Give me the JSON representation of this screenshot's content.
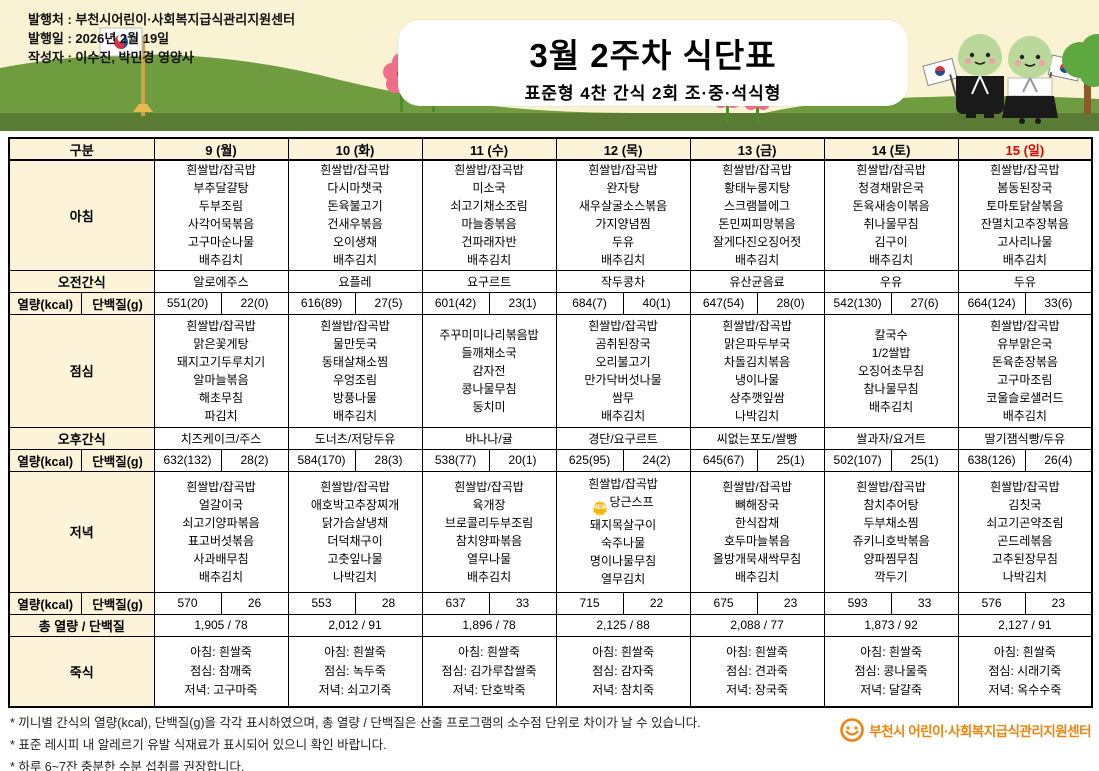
{
  "meta": {
    "publisher": "발행처 : 부천시어린이·사회복지급식관리지원센터",
    "issued": "발행일 : 2026년 2월 19일",
    "author": "작성자 : 이수진, 박민경 영양사"
  },
  "title": {
    "main": "3월 2주차 식단표",
    "sub": "표준형 4찬 간식 2회 조·중·석식형"
  },
  "table": {
    "corner": "구분",
    "labels": {
      "breakfast": "아침",
      "am_snack": "오전간식",
      "kcal": "열량(kcal)",
      "protein": "단백질(g)",
      "lunch": "점심",
      "pm_snack": "오후간식",
      "dinner": "저녁",
      "total": "총 열량 / 단백질",
      "porridge": "죽식"
    },
    "days": [
      {
        "date": "9 (월)",
        "holiday": false,
        "breakfast": [
          "흰쌀밥/잡곡밥",
          "부추달걀탕",
          "두부조림",
          "사각어묵볶음",
          "고구마순나물",
          "배추김치"
        ],
        "am_snack": "알로에주스",
        "kcal1": "551(20)",
        "protein1": "22(0)",
        "lunch": [
          "흰쌀밥/잡곡밥",
          "맑은꽃게탕",
          "돼지고기두루치기",
          "알마늘볶음",
          "해초무침",
          "파김치"
        ],
        "pm_snack": "치즈케이크/주스",
        "kcal2": "632(132)",
        "protein2": "28(2)",
        "dinner": [
          "흰쌀밥/잡곡밥",
          "얼갈이국",
          "쇠고기양파볶음",
          "표고버섯볶음",
          "사과배무침",
          "배추김치"
        ],
        "kcal3": "570",
        "protein3": "26",
        "total": "1,905  /  78",
        "porridge": [
          "아침: 흰쌀죽",
          "점심: 참깨죽",
          "저녁: 고구마죽"
        ]
      },
      {
        "date": "10 (화)",
        "holiday": false,
        "breakfast": [
          "흰쌀밥/잡곡밥",
          "다시마챗국",
          "돈육불고기",
          "건새우볶음",
          "오이생채",
          "배추김치"
        ],
        "am_snack": "요플레",
        "kcal1": "616(89)",
        "protein1": "27(5)",
        "lunch": [
          "흰쌀밥/잡곡밥",
          "물만둣국",
          "동태살채소찜",
          "우엉조림",
          "방풍나물",
          "배추김치"
        ],
        "pm_snack": "도너츠/저당두유",
        "kcal2": "584(170)",
        "protein2": "28(3)",
        "dinner": [
          "흰쌀밥/잡곡밥",
          "애호박고추장찌개",
          "닭가슴살냉채",
          "더덕채구이",
          "고춧잎나물",
          "나박김치"
        ],
        "kcal3": "553",
        "protein3": "28",
        "total": "2,012  /  91",
        "porridge": [
          "아침: 흰쌀죽",
          "점심: 녹두죽",
          "저녁: 쇠고기죽"
        ]
      },
      {
        "date": "11 (수)",
        "holiday": false,
        "breakfast": [
          "흰쌀밥/잡곡밥",
          "미소국",
          "쇠고기채소조림",
          "마늘종볶음",
          "건파래자반",
          "배추김치"
        ],
        "am_snack": "요구르트",
        "kcal1": "601(42)",
        "protein1": "23(1)",
        "lunch": [
          "주꾸미미나리볶음밥",
          "들깨채소국",
          "감자전",
          "콩나물무침",
          "동치미"
        ],
        "pm_snack": "바나나/귤",
        "kcal2": "538(77)",
        "protein2": "20(1)",
        "dinner": [
          "흰쌀밥/잡곡밥",
          "육개장",
          "브로콜리두부조림",
          "참치양파볶음",
          "열무나물",
          "배추김치"
        ],
        "kcal3": "637",
        "protein3": "33",
        "total": "1,896  /  78",
        "porridge": [
          "아침: 흰쌀죽",
          "점심: 김가루찹쌀죽",
          "저녁: 단호박죽"
        ]
      },
      {
        "date": "12 (목)",
        "holiday": false,
        "breakfast": [
          "흰쌀밥/잡곡밥",
          "완자탕",
          "새우살굴소스볶음",
          "가지양념찜",
          "두유",
          "배추김치"
        ],
        "am_snack": "작두콩차",
        "kcal1": "684(7)",
        "protein1": "40(1)",
        "lunch": [
          "흰쌀밥/잡곡밥",
          "곰취된장국",
          "오리불고기",
          "만가닥버섯나물",
          "쌈무",
          "배추김치"
        ],
        "pm_snack": "경단/요구르트",
        "kcal2": "625(95)",
        "protein2": "24(2)",
        "dinner": [
          "흰쌀밥/잡곡밥",
          {
            "text": "당근스프",
            "badge": "NEW"
          },
          "돼지목살구이",
          "숙주나물",
          "명이나물무침",
          "열무김치"
        ],
        "kcal3": "715",
        "protein3": "22",
        "total": "2,125  /  88",
        "porridge": [
          "아침: 흰쌀죽",
          "점심: 감자죽",
          "저녁: 참치죽"
        ]
      },
      {
        "date": "13 (금)",
        "holiday": false,
        "breakfast": [
          "흰쌀밥/잡곡밥",
          "황태누룽지탕",
          "스크램블에그",
          "돈민찌피망볶음",
          "잘게다진오징어젓",
          "배추김치"
        ],
        "am_snack": "유산균음료",
        "kcal1": "647(54)",
        "protein1": "28(0)",
        "lunch": [
          "흰쌀밥/잡곡밥",
          "맑은파두부국",
          "차돌김치볶음",
          "냉이나물",
          "상추깻잎쌈",
          "나박김치"
        ],
        "pm_snack": "씨없는포도/쌀빵",
        "kcal2": "645(67)",
        "protein2": "25(1)",
        "dinner": [
          "흰쌀밥/잡곡밥",
          "뼈해장국",
          "한식잡채",
          "호두마늘볶음",
          "올방개묵새싹무침",
          "배추김치"
        ],
        "kcal3": "675",
        "protein3": "23",
        "total": "2,088  /  77",
        "porridge": [
          "아침: 흰쌀죽",
          "점심: 견과죽",
          "저녁: 장국죽"
        ]
      },
      {
        "date": "14 (토)",
        "holiday": false,
        "breakfast": [
          "흰쌀밥/잡곡밥",
          "청경채맑은국",
          "돈육새송이볶음",
          "취나물무침",
          "김구이",
          "배추김치"
        ],
        "am_snack": "우유",
        "kcal1": "542(130)",
        "protein1": "27(6)",
        "lunch": [
          "칼국수",
          "1/2쌀밥",
          "오징어초무침",
          "참나물무침",
          "배추김치"
        ],
        "pm_snack": "쌀과자/요거트",
        "kcal2": "502(107)",
        "protein2": "25(1)",
        "dinner": [
          "흰쌀밥/잡곡밥",
          "참치추어탕",
          "두부채소찜",
          "쥬키니호박볶음",
          "양파찜무침",
          "깍두기"
        ],
        "kcal3": "593",
        "protein3": "33",
        "total": "1,873  /  92",
        "porridge": [
          "아침: 흰쌀죽",
          "점심: 콩나물죽",
          "저녁: 달걀죽"
        ]
      },
      {
        "date": "15 (일)",
        "holiday": true,
        "breakfast": [
          "흰쌀밥/잡곡밥",
          "봄동된장국",
          "토마토닭살볶음",
          "잔멸치고추장볶음",
          "고사리나물",
          "배추김치"
        ],
        "am_snack": "두유",
        "kcal1": "664(124)",
        "protein1": "33(6)",
        "lunch": [
          "흰쌀밥/잡곡밥",
          "유부맑은국",
          "돈육춘장볶음",
          "고구마조림",
          "코울슬로샐러드",
          "배추김치"
        ],
        "pm_snack": "딸기잼식빵/두유",
        "kcal2": "638(126)",
        "protein2": "26(4)",
        "dinner": [
          "흰쌀밥/잡곡밥",
          "김칫국",
          "쇠고기곤약조림",
          "곤드레볶음",
          "고추된장무침",
          "나박김치"
        ],
        "kcal3": "576",
        "protein3": "23",
        "total": "2,127  /  91",
        "porridge": [
          "아침: 흰쌀죽",
          "점심: 시래기죽",
          "저녁: 옥수수죽"
        ]
      }
    ]
  },
  "footnotes": [
    "* 끼니별 간식의 열량(kcal), 단백질(g)을 각각 표시하였으며, 총 열량 / 단백질은 산출 프로그램의 소수점 단위로 차이가 날 수 있습니다.",
    "* 표준 레시피 내 알레르기 유발 식재료가 표시되어 있으니 확인 바랍니다.",
    "* 하루 6~7잔 충분한 수분 섭취를 권장합니다."
  ],
  "logo_text": "부천시 어린이·사회복지급식관리지원센터",
  "colors": {
    "header_bg": "#fcf3d8",
    "holiday_red": "#e60000",
    "sky": "#f9f3d3",
    "hill_light": "#6f9c3e",
    "hill_dark": "#597b33",
    "logo_orange": "#f0830a",
    "new_badge": "#ffb400"
  }
}
